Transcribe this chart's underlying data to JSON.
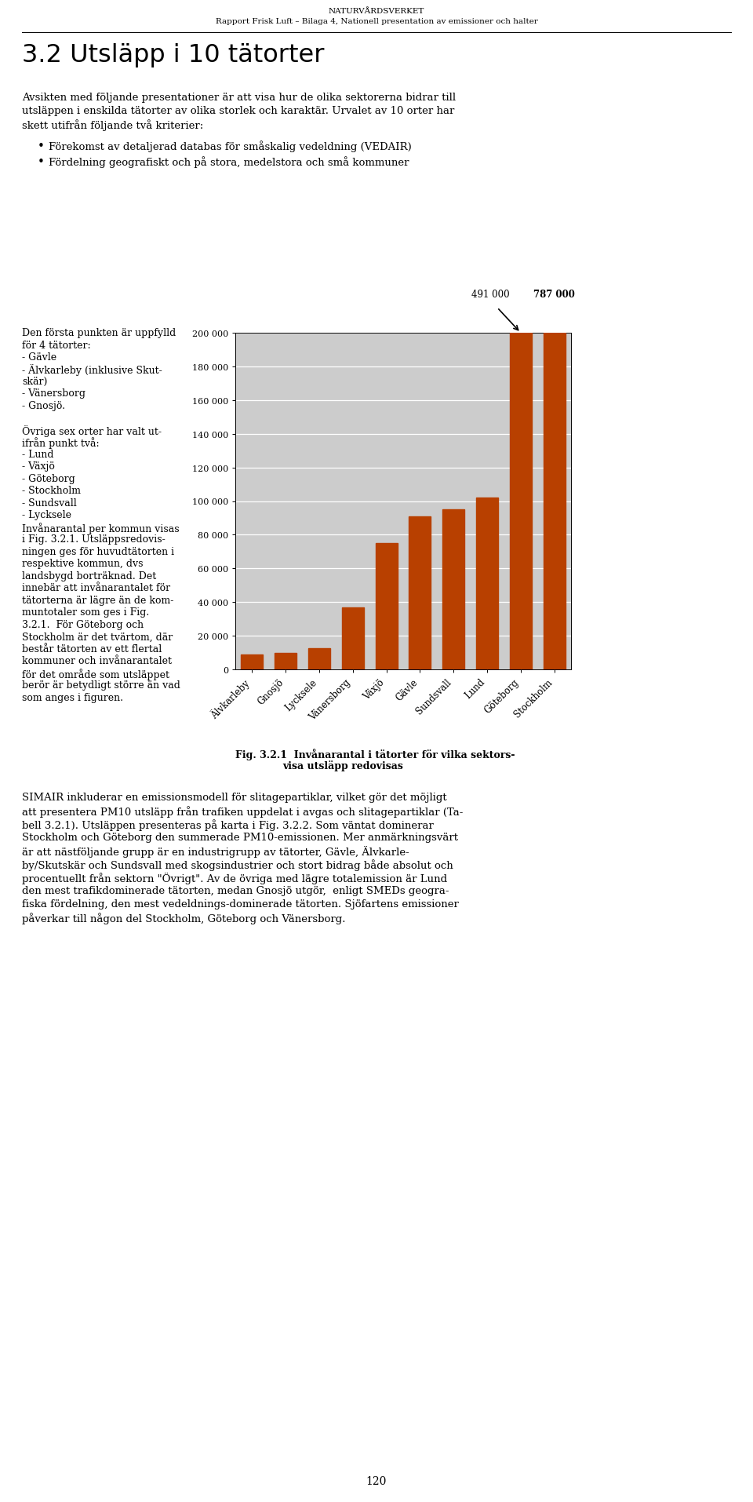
{
  "header_line1": "NATURVÅRDSVERKET",
  "header_line2": "Rapport Frisk Luft – Bilaga 4, Nationell presentation av emissioner och halter",
  "section_title": "3.2 Utsläpp i 10 tätorter",
  "body_text1_lines": [
    "Avsikten med följande presentationer är att visa hur de olika sektorerna bidrar till",
    "utsläppen i enskilda tätorter av olika storlek och karaktär. Urvalet av 10 orter har",
    "skett utifrån följande två kriterier:"
  ],
  "bullet1": "Förekomst av detaljerad databas för småskalig vedeldning (VEDAIR)",
  "bullet2": "Fördelning geografiskt och på stora, medelstora och små kommuner",
  "left_col_lines": [
    "Den första punkten är uppfylld",
    "för 4 tätorter:",
    "- Gävle",
    "- Älvkarleby (inklusive Skut-",
    "skär)",
    "- Vänersborg",
    "- Gnosjö.",
    "",
    "Övriga sex orter har valt ut-",
    "ifrån punkt två:",
    "- Lund",
    "- Växjö",
    "- Göteborg",
    "- Stockholm",
    "- Sundsvall",
    "- Lycksele",
    "Invånarantal per kommun visas",
    "i Fig. 3.2.1. Utsläppsredovis-",
    "ningen ges för huvudtätorten i",
    "respektive kommun, dvs",
    "landsbygd borträknad. Det",
    "innebär att invånarantalet för",
    "tätorterna är lägre än de kom-",
    "muntotaler som ges i Fig.",
    "3.2.1.  För Göteborg och",
    "Stockholm är det tvärtom, där",
    "består tätorten av ett flertal",
    "kommuner och invånarantalet",
    "för det område som utsläppet",
    "berör är betydligt större än vad",
    "som anges i figuren."
  ],
  "fig_caption_line1": "Fig. 3.2.1  Invånarantal i tätorter för vilka sektors-",
  "fig_caption_line2": "visa utsläpp redovisas",
  "body_text2_lines": [
    "SIMAIR inkluderar en emissionsmodell för slitagepartiklar, vilket gör det möjligt",
    "att presentera PM10 utsläpp från trafiken uppdelat i avgas och slitagepartiklar (Ta-",
    "bell 3.2.1). Utsläppen presenteras på karta i Fig. 3.2.2. Som väntat dominerar",
    "Stockholm och Göteborg den summerade PM10-emissionen. Mer anmärkningsvärt",
    "är att nästföljande grupp är en industrigrupp av tätorter, Gävle, Älvkarle-",
    "by/Skutskär och Sundsvall med skogsindustrier och stort bidrag både absolut och",
    "procentuellt från sektorn \"Övrigt\". Av de övriga med lägre totalemission är Lund",
    "den mest trafikdominerade tätorten, medan Gnosjö utgör,  enligt SMEDs geogra-",
    "fiska fördelning, den mest vedeldnings-dominerade tätorten. Sjöfartens emissioner",
    "påverkar till någon del Stockholm, Göteborg och Vänersborg."
  ],
  "page_number": "120",
  "categories": [
    "Älvkarleby",
    "Gnosjö",
    "Lycksele",
    "Vänersborg",
    "Växjö",
    "Gävle",
    "Sundsvall",
    "Lund",
    "Göteborg",
    "Stockholm"
  ],
  "values": [
    9000,
    10000,
    12500,
    37000,
    75000,
    91000,
    95000,
    102000,
    491000,
    787000
  ],
  "bar_color": "#B84000",
  "annotation_491": "491 000",
  "annotation_787": "787 000",
  "ylim": [
    0,
    200000
  ],
  "ytick_values": [
    0,
    20000,
    40000,
    60000,
    80000,
    100000,
    120000,
    140000,
    160000,
    180000,
    200000
  ],
  "ytick_labels": [
    "0",
    "20 000",
    "40 000",
    "60 000",
    "80 000",
    "100 000",
    "120 000",
    "140 000",
    "160 000",
    "180 000",
    "200 000"
  ],
  "chart_bg": "#CCCCCC",
  "page_bg": "#FFFFFF"
}
